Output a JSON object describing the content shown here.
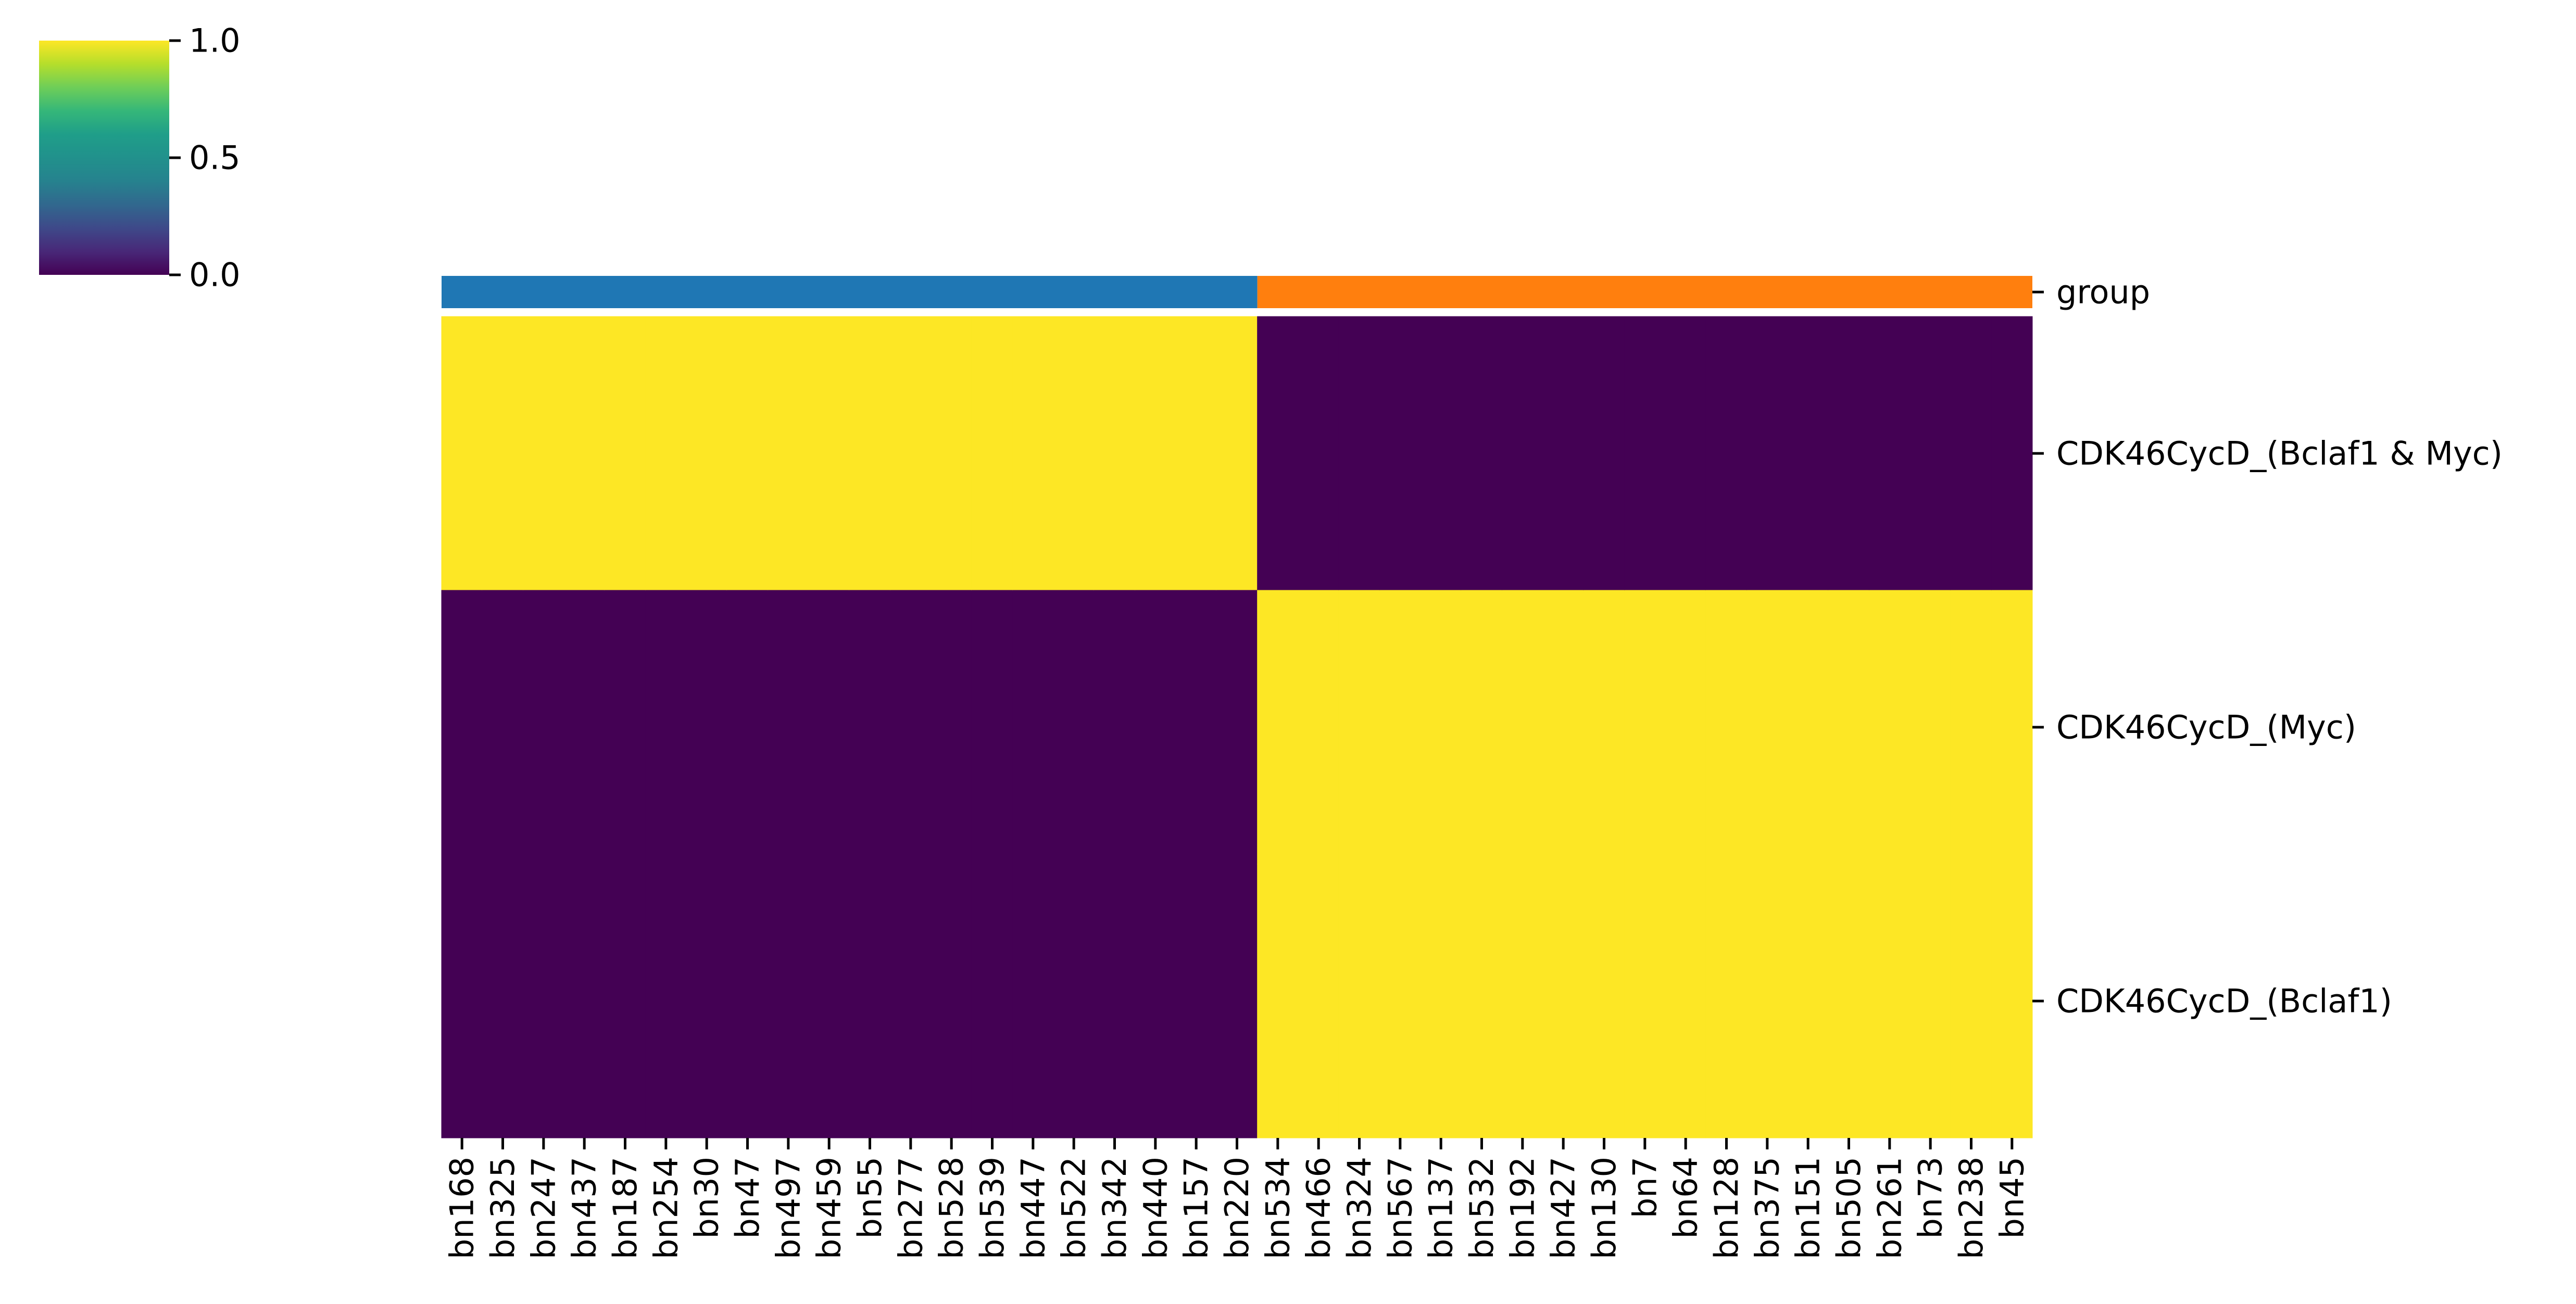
{
  "chart_data": {
    "type": "heatmap",
    "title": "",
    "xlabel": "",
    "ylabel": "",
    "columns": [
      "bn168",
      "bn325",
      "bn247",
      "bn437",
      "bn187",
      "bn254",
      "bn30",
      "bn47",
      "bn497",
      "bn459",
      "bn55",
      "bn277",
      "bn528",
      "bn539",
      "bn447",
      "bn522",
      "bn342",
      "bn440",
      "bn157",
      "bn220",
      "bn534",
      "bn466",
      "bn324",
      "bn567",
      "bn137",
      "bn532",
      "bn192",
      "bn427",
      "bn130",
      "bn7",
      "bn64",
      "bn128",
      "bn375",
      "bn151",
      "bn505",
      "bn261",
      "bn73",
      "bn238",
      "bn45"
    ],
    "rows": [
      "CDK46CycD_(Bclaf1 & Myc)",
      "CDK46CycD_(Myc)",
      "CDK46CycD_(Bclaf1)"
    ],
    "group_row_label": "group",
    "group_colors": [
      "#1f77b4",
      "#ff7f0e"
    ],
    "groups": [
      {
        "start": 0,
        "end": 19,
        "color": "#1f77b4",
        "values": [
          1,
          0,
          0
        ]
      },
      {
        "start": 20,
        "end": 38,
        "color": "#ff7f0e",
        "values": [
          0,
          1,
          1
        ]
      }
    ],
    "colorbar": {
      "colormap": "viridis",
      "ticks": [
        "0.0",
        "0.5",
        "1.0"
      ],
      "range": [
        0,
        1
      ]
    },
    "grid": false
  }
}
